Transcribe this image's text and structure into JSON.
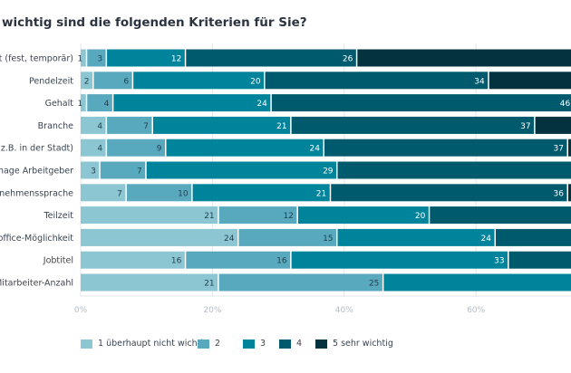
{
  "title": "wichtig sind die folgenden Kriterien für Sie?",
  "chart_data": {
    "type": "bar",
    "orientation": "horizontal",
    "stacked": true,
    "title": "wichtig sind die folgenden Kriterien für Sie?",
    "categories": [
      "art (fest, temporär)",
      "Pendelzeit",
      "Gehalt",
      "Branche",
      "rt (z.B. in der Stadt)",
      "Image Arbeitgeber",
      "ernehmenssprache",
      "Teilzeit",
      "eoffice-Möglichkeit",
      "Jobtitel",
      "Mitarbeiter-Anzahl"
    ],
    "series": [
      {
        "name": "1 überhaupt nicht wichtig",
        "color": "#8cc6d2",
        "values": [
          1,
          2,
          1,
          4,
          4,
          3,
          7,
          21,
          24,
          16,
          21
        ]
      },
      {
        "name": "2",
        "color": "#58a9be",
        "values": [
          3,
          6,
          4,
          7,
          9,
          7,
          10,
          12,
          15,
          16,
          25
        ]
      },
      {
        "name": "3",
        "color": "#00849b",
        "values": [
          12,
          20,
          24,
          21,
          24,
          29,
          21,
          20,
          24,
          33,
          null
        ]
      },
      {
        "name": "4",
        "color": "#005a6d",
        "values": [
          26,
          34,
          46,
          37,
          37,
          null,
          36,
          null,
          null,
          null,
          null
        ]
      },
      {
        "name": "5 sehr wichtig",
        "color": "#04333f",
        "values": [
          null,
          null,
          null,
          null,
          null,
          null,
          null,
          null,
          null,
          null,
          null
        ]
      }
    ],
    "xticks": [
      "0%",
      "20%",
      "40%",
      "60%"
    ],
    "xlim": [
      0,
      100
    ],
    "unit": "%",
    "grid": true,
    "legend_position": "bottom"
  }
}
